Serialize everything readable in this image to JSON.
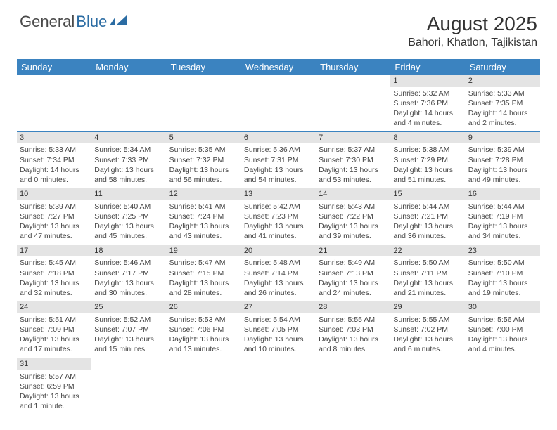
{
  "brand": {
    "part1": "General",
    "part2": "Blue"
  },
  "title": {
    "month": "August 2025",
    "location": "Bahori, Khatlon, Tajikistan"
  },
  "colors": {
    "header_bg": "#3b83c0",
    "header_fg": "#ffffff",
    "rule": "#3b83c0",
    "daynum_bg": "#e4e4e4"
  },
  "day_headers": [
    "Sunday",
    "Monday",
    "Tuesday",
    "Wednesday",
    "Thursday",
    "Friday",
    "Saturday"
  ],
  "weeks": [
    [
      null,
      null,
      null,
      null,
      null,
      {
        "n": "1",
        "sr": "Sunrise: 5:32 AM",
        "ss": "Sunset: 7:36 PM",
        "dl": "Daylight: 14 hours and 4 minutes."
      },
      {
        "n": "2",
        "sr": "Sunrise: 5:33 AM",
        "ss": "Sunset: 7:35 PM",
        "dl": "Daylight: 14 hours and 2 minutes."
      }
    ],
    [
      {
        "n": "3",
        "sr": "Sunrise: 5:33 AM",
        "ss": "Sunset: 7:34 PM",
        "dl": "Daylight: 14 hours and 0 minutes."
      },
      {
        "n": "4",
        "sr": "Sunrise: 5:34 AM",
        "ss": "Sunset: 7:33 PM",
        "dl": "Daylight: 13 hours and 58 minutes."
      },
      {
        "n": "5",
        "sr": "Sunrise: 5:35 AM",
        "ss": "Sunset: 7:32 PM",
        "dl": "Daylight: 13 hours and 56 minutes."
      },
      {
        "n": "6",
        "sr": "Sunrise: 5:36 AM",
        "ss": "Sunset: 7:31 PM",
        "dl": "Daylight: 13 hours and 54 minutes."
      },
      {
        "n": "7",
        "sr": "Sunrise: 5:37 AM",
        "ss": "Sunset: 7:30 PM",
        "dl": "Daylight: 13 hours and 53 minutes."
      },
      {
        "n": "8",
        "sr": "Sunrise: 5:38 AM",
        "ss": "Sunset: 7:29 PM",
        "dl": "Daylight: 13 hours and 51 minutes."
      },
      {
        "n": "9",
        "sr": "Sunrise: 5:39 AM",
        "ss": "Sunset: 7:28 PM",
        "dl": "Daylight: 13 hours and 49 minutes."
      }
    ],
    [
      {
        "n": "10",
        "sr": "Sunrise: 5:39 AM",
        "ss": "Sunset: 7:27 PM",
        "dl": "Daylight: 13 hours and 47 minutes."
      },
      {
        "n": "11",
        "sr": "Sunrise: 5:40 AM",
        "ss": "Sunset: 7:25 PM",
        "dl": "Daylight: 13 hours and 45 minutes."
      },
      {
        "n": "12",
        "sr": "Sunrise: 5:41 AM",
        "ss": "Sunset: 7:24 PM",
        "dl": "Daylight: 13 hours and 43 minutes."
      },
      {
        "n": "13",
        "sr": "Sunrise: 5:42 AM",
        "ss": "Sunset: 7:23 PM",
        "dl": "Daylight: 13 hours and 41 minutes."
      },
      {
        "n": "14",
        "sr": "Sunrise: 5:43 AM",
        "ss": "Sunset: 7:22 PM",
        "dl": "Daylight: 13 hours and 39 minutes."
      },
      {
        "n": "15",
        "sr": "Sunrise: 5:44 AM",
        "ss": "Sunset: 7:21 PM",
        "dl": "Daylight: 13 hours and 36 minutes."
      },
      {
        "n": "16",
        "sr": "Sunrise: 5:44 AM",
        "ss": "Sunset: 7:19 PM",
        "dl": "Daylight: 13 hours and 34 minutes."
      }
    ],
    [
      {
        "n": "17",
        "sr": "Sunrise: 5:45 AM",
        "ss": "Sunset: 7:18 PM",
        "dl": "Daylight: 13 hours and 32 minutes."
      },
      {
        "n": "18",
        "sr": "Sunrise: 5:46 AM",
        "ss": "Sunset: 7:17 PM",
        "dl": "Daylight: 13 hours and 30 minutes."
      },
      {
        "n": "19",
        "sr": "Sunrise: 5:47 AM",
        "ss": "Sunset: 7:15 PM",
        "dl": "Daylight: 13 hours and 28 minutes."
      },
      {
        "n": "20",
        "sr": "Sunrise: 5:48 AM",
        "ss": "Sunset: 7:14 PM",
        "dl": "Daylight: 13 hours and 26 minutes."
      },
      {
        "n": "21",
        "sr": "Sunrise: 5:49 AM",
        "ss": "Sunset: 7:13 PM",
        "dl": "Daylight: 13 hours and 24 minutes."
      },
      {
        "n": "22",
        "sr": "Sunrise: 5:50 AM",
        "ss": "Sunset: 7:11 PM",
        "dl": "Daylight: 13 hours and 21 minutes."
      },
      {
        "n": "23",
        "sr": "Sunrise: 5:50 AM",
        "ss": "Sunset: 7:10 PM",
        "dl": "Daylight: 13 hours and 19 minutes."
      }
    ],
    [
      {
        "n": "24",
        "sr": "Sunrise: 5:51 AM",
        "ss": "Sunset: 7:09 PM",
        "dl": "Daylight: 13 hours and 17 minutes."
      },
      {
        "n": "25",
        "sr": "Sunrise: 5:52 AM",
        "ss": "Sunset: 7:07 PM",
        "dl": "Daylight: 13 hours and 15 minutes."
      },
      {
        "n": "26",
        "sr": "Sunrise: 5:53 AM",
        "ss": "Sunset: 7:06 PM",
        "dl": "Daylight: 13 hours and 13 minutes."
      },
      {
        "n": "27",
        "sr": "Sunrise: 5:54 AM",
        "ss": "Sunset: 7:05 PM",
        "dl": "Daylight: 13 hours and 10 minutes."
      },
      {
        "n": "28",
        "sr": "Sunrise: 5:55 AM",
        "ss": "Sunset: 7:03 PM",
        "dl": "Daylight: 13 hours and 8 minutes."
      },
      {
        "n": "29",
        "sr": "Sunrise: 5:55 AM",
        "ss": "Sunset: 7:02 PM",
        "dl": "Daylight: 13 hours and 6 minutes."
      },
      {
        "n": "30",
        "sr": "Sunrise: 5:56 AM",
        "ss": "Sunset: 7:00 PM",
        "dl": "Daylight: 13 hours and 4 minutes."
      }
    ],
    [
      {
        "n": "31",
        "sr": "Sunrise: 5:57 AM",
        "ss": "Sunset: 6:59 PM",
        "dl": "Daylight: 13 hours and 1 minute."
      },
      null,
      null,
      null,
      null,
      null,
      null
    ]
  ]
}
